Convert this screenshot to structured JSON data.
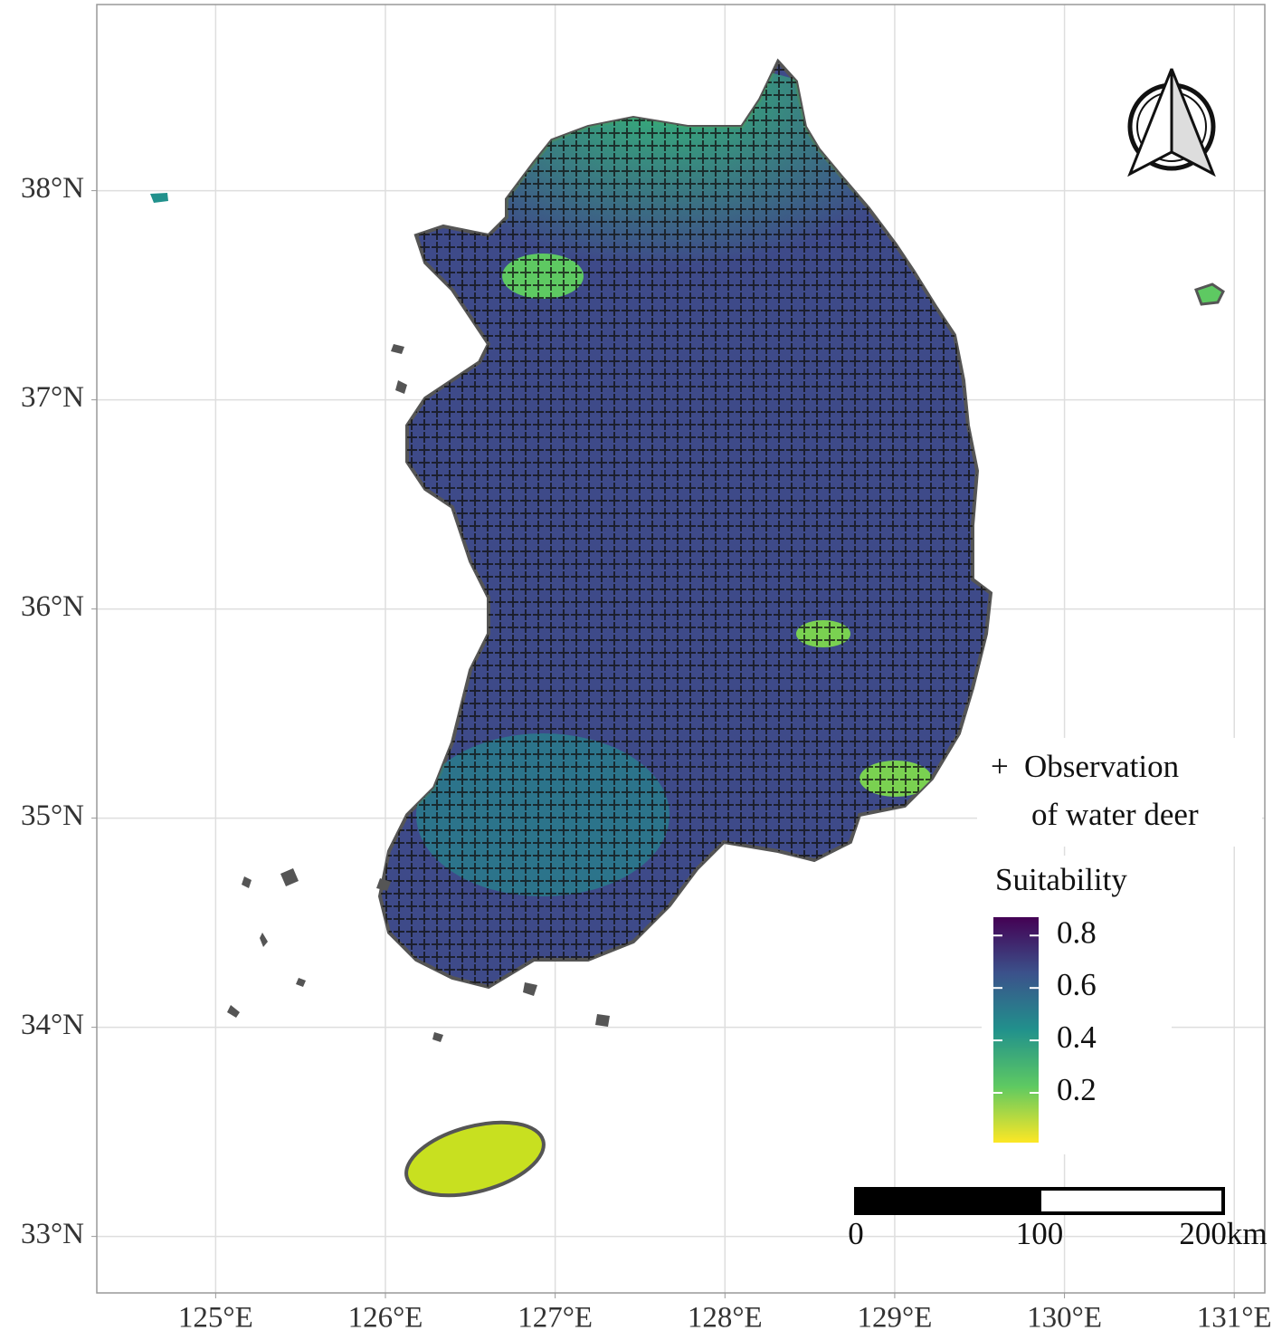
{
  "map": {
    "xlim": [
      124.3,
      131.18
    ],
    "ylim": [
      32.73,
      38.89
    ],
    "grid": true,
    "xticks": [
      {
        "value": 125,
        "label": "125°E"
      },
      {
        "value": 126,
        "label": "126°E"
      },
      {
        "value": 127,
        "label": "127°E"
      },
      {
        "value": 128,
        "label": "128°E"
      },
      {
        "value": 129,
        "label": "129°E"
      },
      {
        "value": 130,
        "label": "130°E"
      },
      {
        "value": 131,
        "label": "131°E"
      }
    ],
    "yticks": [
      {
        "value": 33,
        "label": "33°N"
      },
      {
        "value": 34,
        "label": "34°N"
      },
      {
        "value": 35,
        "label": "35°N"
      },
      {
        "value": 36,
        "label": "36°N"
      },
      {
        "value": 37,
        "label": "37°N"
      },
      {
        "value": 38,
        "label": "38°N"
      }
    ]
  },
  "legend": {
    "symbol": "+",
    "label_lines": [
      "Observation",
      "of water deer"
    ]
  },
  "colorbar": {
    "title": "Suitability",
    "lim": [
      0.01,
      0.87
    ],
    "ticks": [
      0.2,
      0.4,
      0.6,
      0.8
    ]
  },
  "scale_bar": {
    "lim": [
      0,
      200
    ],
    "ticks": [
      0,
      100,
      {
        "value": 200,
        "label": "200km"
      }
    ]
  }
}
